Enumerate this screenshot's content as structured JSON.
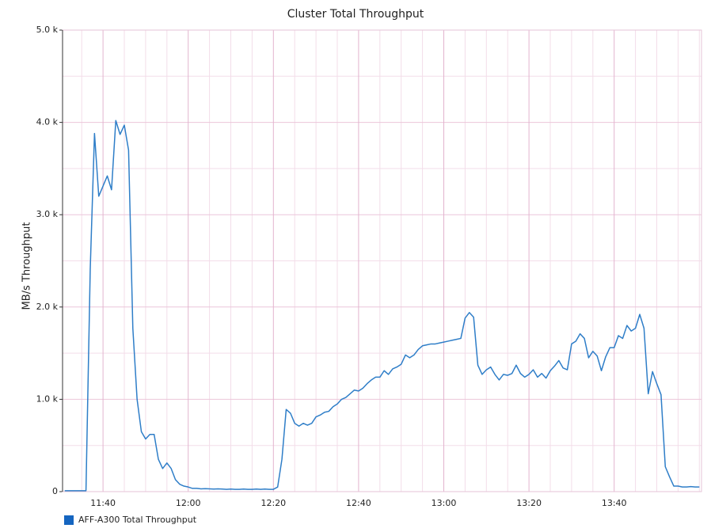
{
  "chart_data": {
    "type": "line",
    "title": "Cluster Total Throughput",
    "y_label": "MB/s Throughput",
    "x": [
      691,
      692,
      693,
      694,
      695,
      696,
      697,
      698,
      699,
      700,
      701,
      702,
      703,
      704,
      705,
      706,
      707,
      708,
      709,
      710,
      711,
      712,
      713,
      714,
      715,
      716,
      717,
      718,
      719,
      720,
      721,
      722,
      723,
      724,
      725,
      726,
      727,
      728,
      729,
      730,
      731,
      732,
      733,
      734,
      735,
      736,
      737,
      738,
      739,
      740,
      741,
      742,
      743,
      744,
      745,
      746,
      747,
      748,
      749,
      750,
      751,
      752,
      753,
      754,
      755,
      756,
      757,
      758,
      759,
      760,
      761,
      762,
      763,
      764,
      765,
      766,
      767,
      768,
      769,
      770,
      771,
      772,
      773,
      774,
      775,
      776,
      777,
      778,
      779,
      780,
      781,
      782,
      783,
      784,
      785,
      786,
      787,
      788,
      789,
      790,
      791,
      792,
      793,
      794,
      795,
      796,
      797,
      798,
      799,
      800,
      801,
      802,
      803,
      804,
      805,
      806,
      807,
      808,
      809,
      810,
      811,
      812,
      813,
      814,
      815,
      816,
      817,
      818,
      819,
      820,
      821,
      822,
      823,
      824,
      825,
      826,
      827,
      828,
      829,
      830,
      831,
      832,
      833,
      834,
      835,
      836,
      837,
      838,
      839,
      840
    ],
    "series": [
      {
        "name": "AFF-A300 Total Throughput",
        "color": "#2f7ec8",
        "legend_color": "#1565c0",
        "values": [
          10,
          10,
          10,
          10,
          10,
          10,
          2410,
          3880,
          3200,
          3310,
          3420,
          3270,
          4020,
          3870,
          3970,
          3700,
          1770,
          1000,
          650,
          570,
          620,
          620,
          350,
          250,
          310,
          250,
          130,
          80,
          60,
          50,
          35,
          35,
          30,
          32,
          30,
          28,
          30,
          28,
          25,
          28,
          25,
          25,
          28,
          25,
          25,
          28,
          25,
          28,
          25,
          25,
          50,
          350,
          890,
          850,
          740,
          710,
          740,
          720,
          740,
          810,
          830,
          860,
          870,
          920,
          950,
          1000,
          1020,
          1060,
          1100,
          1090,
          1120,
          1170,
          1210,
          1240,
          1240,
          1310,
          1270,
          1330,
          1350,
          1380,
          1480,
          1450,
          1480,
          1540,
          1580,
          1590,
          1600,
          1600,
          1610,
          1620,
          1630,
          1640,
          1650,
          1660,
          1880,
          1940,
          1890,
          1370,
          1270,
          1320,
          1350,
          1270,
          1210,
          1270,
          1260,
          1280,
          1370,
          1280,
          1240,
          1270,
          1320,
          1240,
          1280,
          1230,
          1310,
          1360,
          1420,
          1340,
          1320,
          1600,
          1630,
          1710,
          1660,
          1450,
          1520,
          1470,
          1310,
          1460,
          1560,
          1560,
          1690,
          1660,
          1800,
          1740,
          1770,
          1920,
          1770,
          1060,
          1300,
          1170,
          1050,
          270,
          160,
          60,
          60,
          50,
          50,
          55,
          50,
          50
        ]
      }
    ],
    "xlim": [
      690.5,
      840.5
    ],
    "xticks": [
      {
        "value": 700,
        "label": "11:40"
      },
      {
        "value": 720,
        "label": "12:00"
      },
      {
        "value": 740,
        "label": "12:20"
      },
      {
        "value": 760,
        "label": "12:40"
      },
      {
        "value": 780,
        "label": "13:00"
      },
      {
        "value": 800,
        "label": "13:20"
      },
      {
        "value": 820,
        "label": "13:40"
      }
    ],
    "x_minor_ticks": [
      695,
      705,
      710,
      715,
      725,
      730,
      735,
      745,
      750,
      755,
      765,
      770,
      775,
      785,
      790,
      795,
      805,
      810,
      815,
      825,
      830,
      835,
      840
    ],
    "ylim": [
      0,
      5000
    ],
    "yticks": [
      0,
      {
        "value": 1000,
        "label": "1.0 k"
      },
      {
        "value": 2000,
        "label": "2.0 k"
      },
      {
        "value": 3000,
        "label": "3.0 k"
      },
      {
        "value": 4000,
        "label": "4.0 k"
      },
      {
        "value": 5000,
        "label": "5.0 k"
      }
    ],
    "y_minor_ticks": [
      500,
      1500,
      2500,
      3500,
      4500
    ],
    "grid": true,
    "legend": "bottom-left"
  }
}
